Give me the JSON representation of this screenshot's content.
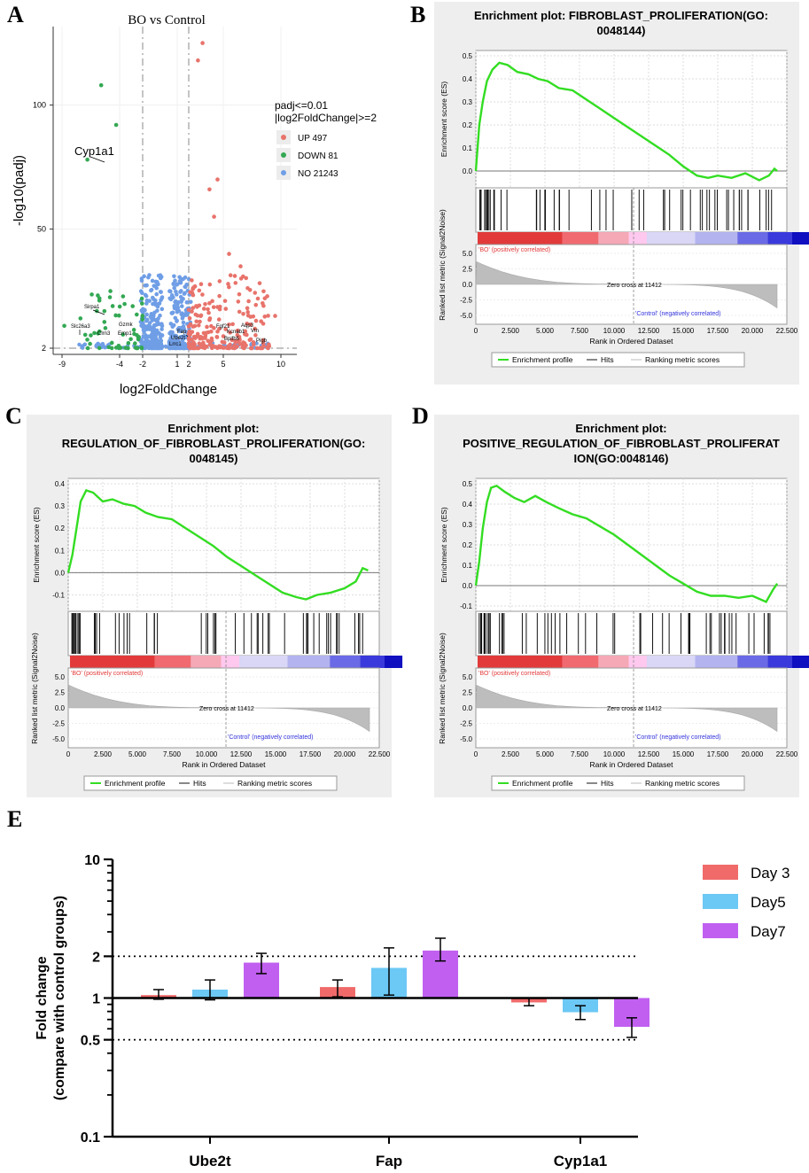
{
  "panel_letters": {
    "a": "A",
    "b": "B",
    "c": "C",
    "d": "D",
    "e": "E"
  },
  "volcano": {
    "title": "BO vs Control",
    "xlabel": "log2FoldChange",
    "ylabel": "-log10(padj)",
    "legend_title_1": "padj<=0.01",
    "legend_title_2": "|log2FoldChange|>=2",
    "legend_items": [
      {
        "label": "UP 497",
        "color": "#e8736b"
      },
      {
        "label": "DOWN 81",
        "color": "#33a853"
      },
      {
        "label": "NO 21243",
        "color": "#6f9ee6"
      }
    ],
    "gene_labels": [
      "Cyp1a1",
      "Sirpa1",
      "Slc26a3",
      "Clrn3",
      "Gzmk",
      "Emp1",
      "Fap",
      "Ube2t",
      "Lrrc1",
      "Fgf21",
      "Aqp3",
      "Kcnab1",
      "Vtn",
      "Bpifb5",
      "Pigb"
    ]
  },
  "gsea_common": {
    "ylabel_es": "Enrichment score (ES)",
    "ylabel_metric": "Ranked list metric (Signal2Noise)",
    "xlabel": "Rank in Ordered Dataset",
    "pos_label": "'BO' (positively correlated)",
    "neg_label": "'Control' (negatively correlated)",
    "zero_cross": "Zero cross at 11412",
    "legend_profile": "Enrichment profile",
    "legend_hits": "Hits",
    "legend_metric": "Ranking metric scores"
  },
  "gsea_b": {
    "title_1": "Enrichment plot: FIBROBLAST_PROLIFERATION(GO:",
    "title_2": "0048144)"
  },
  "gsea_c": {
    "title_1": "Enrichment plot:",
    "title_2": "REGULATION_OF_FIBROBLAST_PROLIFERATION(GO:",
    "title_3": "0048145)"
  },
  "gsea_d": {
    "title_1": "Enrichment plot:",
    "title_2": "POSITIVE_REGULATION_OF_FIBROBLAST_PROLIFERAT",
    "title_3": "ION(GO:0048146)"
  },
  "chart_data": [
    {
      "type": "scatter",
      "title": "BO vs Control",
      "xlabel": "log2FoldChange",
      "ylabel": "-log10(padj)",
      "x_ticks": [
        "-9",
        "-4",
        "-2",
        "1",
        "2",
        "5",
        "10"
      ],
      "y_ticks": [
        "2",
        "50",
        "100"
      ],
      "thresholds": {
        "x": [
          -2,
          2
        ],
        "y": 2
      },
      "series": [
        {
          "name": "UP 497",
          "color": "#e8736b"
        },
        {
          "name": "DOWN 81",
          "color": "#33a853"
        },
        {
          "name": "NO 21243",
          "color": "#6f9ee6"
        }
      ]
    },
    {
      "type": "line",
      "title": "Enrichment plot: FIBROBLAST_PROLIFERATION(GO: 0048144)",
      "xlabel": "Rank in Ordered Dataset",
      "ylabel": "Enrichment score (ES)",
      "ylim": [
        -0.05,
        0.5
      ],
      "xlim": [
        0,
        22500
      ],
      "y_ticks": [
        "0.5",
        "0.4",
        "0.3",
        "0.2",
        "0.1",
        "0.0"
      ],
      "x": [
        0,
        250,
        500,
        800,
        1200,
        1700,
        2300,
        3000,
        3800,
        4500,
        5200,
        6000,
        7000,
        8000,
        9000,
        10000,
        11000,
        12000,
        13000,
        14000,
        15000,
        16000,
        16800,
        17500,
        18500,
        19500,
        20500,
        21200,
        21600,
        21800
      ],
      "y": [
        0.0,
        0.2,
        0.3,
        0.39,
        0.44,
        0.47,
        0.46,
        0.43,
        0.42,
        0.4,
        0.39,
        0.36,
        0.35,
        0.31,
        0.27,
        0.23,
        0.19,
        0.15,
        0.11,
        0.07,
        0.02,
        -0.02,
        -0.03,
        -0.02,
        -0.03,
        -0.01,
        -0.04,
        -0.02,
        0.01,
        0.0
      ]
    },
    {
      "type": "line",
      "title": "Enrichment plot: REGULATION_OF_FIBROBLAST_PROLIFERATION(GO: 0048145)",
      "xlabel": "Rank in Ordered Dataset",
      "ylabel": "Enrichment score (ES)",
      "ylim": [
        -0.15,
        0.4
      ],
      "xlim": [
        0,
        22500
      ],
      "y_ticks": [
        "0.4",
        "0.3",
        "0.2",
        "0.1",
        "0.0",
        "-0.1"
      ],
      "x": [
        0,
        300,
        600,
        900,
        1300,
        1800,
        2500,
        3200,
        4000,
        4800,
        5600,
        6500,
        7500,
        8500,
        9500,
        10500,
        11500,
        12500,
        13500,
        14500,
        15500,
        16500,
        17200,
        18000,
        19000,
        20000,
        20800,
        21300,
        21700
      ],
      "y": [
        0.0,
        0.08,
        0.2,
        0.32,
        0.37,
        0.36,
        0.32,
        0.33,
        0.31,
        0.3,
        0.27,
        0.25,
        0.24,
        0.2,
        0.16,
        0.12,
        0.07,
        0.03,
        -0.01,
        -0.05,
        -0.09,
        -0.11,
        -0.12,
        -0.1,
        -0.09,
        -0.07,
        -0.04,
        0.02,
        0.01
      ]
    },
    {
      "type": "line",
      "title": "Enrichment plot: POSITIVE_REGULATION_OF_FIBROBLAST_PROLIFERATION(GO:0048146)",
      "xlabel": "Rank in Ordered Dataset",
      "ylabel": "Enrichment score (ES)",
      "ylim": [
        -0.1,
        0.5
      ],
      "xlim": [
        0,
        22500
      ],
      "y_ticks": [
        "0.5",
        "0.4",
        "0.3",
        "0.2",
        "0.1",
        "0.0",
        "-0.1"
      ],
      "x": [
        0,
        250,
        500,
        800,
        1100,
        1500,
        2100,
        2800,
        3500,
        4300,
        5100,
        6000,
        7000,
        8000,
        9000,
        10000,
        11000,
        12000,
        13000,
        14000,
        15000,
        16000,
        17000,
        18000,
        19000,
        20000,
        21000,
        21500,
        21800
      ],
      "y": [
        0.0,
        0.12,
        0.28,
        0.41,
        0.48,
        0.49,
        0.46,
        0.43,
        0.41,
        0.44,
        0.41,
        0.38,
        0.35,
        0.33,
        0.29,
        0.25,
        0.2,
        0.15,
        0.1,
        0.05,
        0.01,
        -0.03,
        -0.05,
        -0.05,
        -0.06,
        -0.05,
        -0.08,
        -0.02,
        0.01
      ]
    },
    {
      "type": "bar",
      "scale": "log",
      "ylabel": "Fold change (compare with control groups)",
      "ylim": [
        0.1,
        10
      ],
      "y_ticks": [
        "0.1",
        "0.5",
        "1",
        "2",
        "10"
      ],
      "reference_lines": [
        0.5,
        2
      ],
      "categories": [
        "Ube2t",
        "Fap",
        "Cyp1a1"
      ],
      "legend_position": "top-right",
      "series": [
        {
          "name": "Day 3",
          "color": "#f06a6a",
          "values": [
            1.05,
            1.2,
            0.93
          ],
          "err_low": [
            0.98,
            1.02,
            0.88
          ],
          "err_high": [
            1.15,
            1.35,
            1.0
          ]
        },
        {
          "name": "Day5",
          "color": "#6cc8f5",
          "values": [
            1.15,
            1.65,
            0.79
          ],
          "err_low": [
            0.97,
            1.05,
            0.7
          ],
          "err_high": [
            1.35,
            2.3,
            0.88
          ]
        },
        {
          "name": "Day7",
          "color": "#c160f0",
          "values": [
            1.8,
            2.2,
            0.62
          ],
          "err_low": [
            1.5,
            1.85,
            0.52
          ],
          "err_high": [
            2.1,
            2.7,
            0.72
          ]
        }
      ]
    }
  ]
}
